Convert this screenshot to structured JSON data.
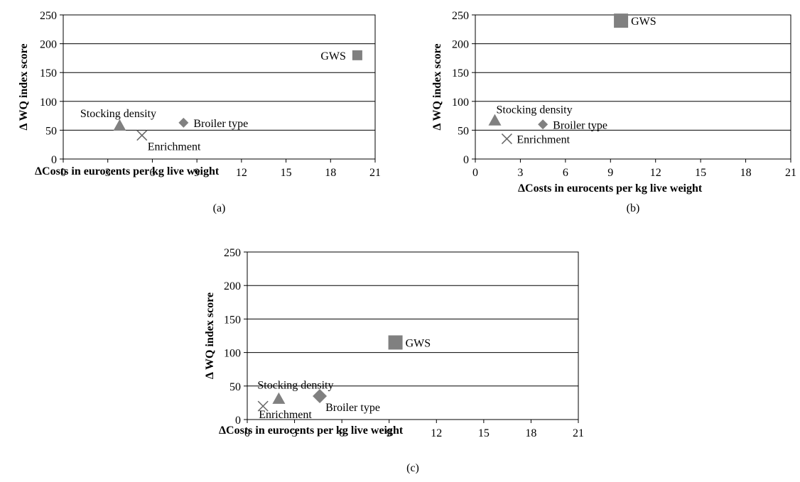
{
  "chart_data": [
    {
      "type": "scatter",
      "caption": "(a)",
      "xlabel": "ΔCosts in eurocents per kg live weight",
      "ylabel": "Δ WQ index score",
      "xlim": [
        0,
        21
      ],
      "ylim": [
        0,
        250
      ],
      "xticks": [
        "0",
        "3",
        "6",
        "9",
        "12",
        "15",
        "18",
        "21"
      ],
      "yticks": [
        "0",
        "50",
        "100",
        "150",
        "200",
        "250"
      ],
      "grid": "horizontal",
      "points": [
        {
          "label": "GWS",
          "x": 19.8,
          "y": 180,
          "marker": "square",
          "label_side": "left"
        },
        {
          "label": "Stocking density",
          "x": 3.8,
          "y": 58,
          "marker": "triangle",
          "label_side": "above"
        },
        {
          "label": "Broiler type",
          "x": 8.1,
          "y": 63,
          "marker": "diamond",
          "label_side": "right"
        },
        {
          "label": "Enrichment",
          "x": 5.3,
          "y": 41,
          "marker": "cross",
          "label_side": "below-right"
        }
      ]
    },
    {
      "type": "scatter",
      "caption": "(b)",
      "xlabel": "ΔCosts in eurocents per kg live weight",
      "ylabel": "Δ WQ index score",
      "xlim": [
        0,
        21
      ],
      "ylim": [
        0,
        250
      ],
      "xticks": [
        "0",
        "3",
        "6",
        "9",
        "12",
        "15",
        "18",
        "21"
      ],
      "yticks": [
        "0",
        "50",
        "100",
        "150",
        "200",
        "250"
      ],
      "grid": "horizontal",
      "points": [
        {
          "label": "GWS",
          "x": 9.7,
          "y": 240,
          "marker": "square-large",
          "label_side": "right"
        },
        {
          "label": "Stocking density",
          "x": 1.3,
          "y": 67,
          "marker": "triangle",
          "label_side": "above-right"
        },
        {
          "label": "Broiler type",
          "x": 4.5,
          "y": 60,
          "marker": "diamond",
          "label_side": "right"
        },
        {
          "label": "Enrichment",
          "x": 2.1,
          "y": 35,
          "marker": "cross",
          "label_side": "right"
        }
      ]
    },
    {
      "type": "scatter",
      "caption": "(c)",
      "xlabel": "ΔCosts in eurocents per kg live weight",
      "ylabel": "Δ WQ index score",
      "xlim": [
        0,
        21
      ],
      "ylim": [
        0,
        250
      ],
      "xticks": [
        "0",
        "3",
        "6",
        "9",
        "12",
        "15",
        "18",
        "21"
      ],
      "yticks": [
        "0",
        "50",
        "100",
        "150",
        "200",
        "250"
      ],
      "grid": "horizontal",
      "points": [
        {
          "label": "GWS",
          "x": 9.4,
          "y": 115,
          "marker": "square-large",
          "label_side": "right"
        },
        {
          "label": "Stocking density",
          "x": 2.0,
          "y": 31,
          "marker": "triangle",
          "label_side": "above-left"
        },
        {
          "label": "Broiler type",
          "x": 4.6,
          "y": 35,
          "marker": "diamond-large",
          "label_side": "below-right"
        },
        {
          "label": "Enrichment",
          "x": 1.0,
          "y": 20,
          "marker": "cross",
          "label_side": "below"
        }
      ]
    }
  ]
}
